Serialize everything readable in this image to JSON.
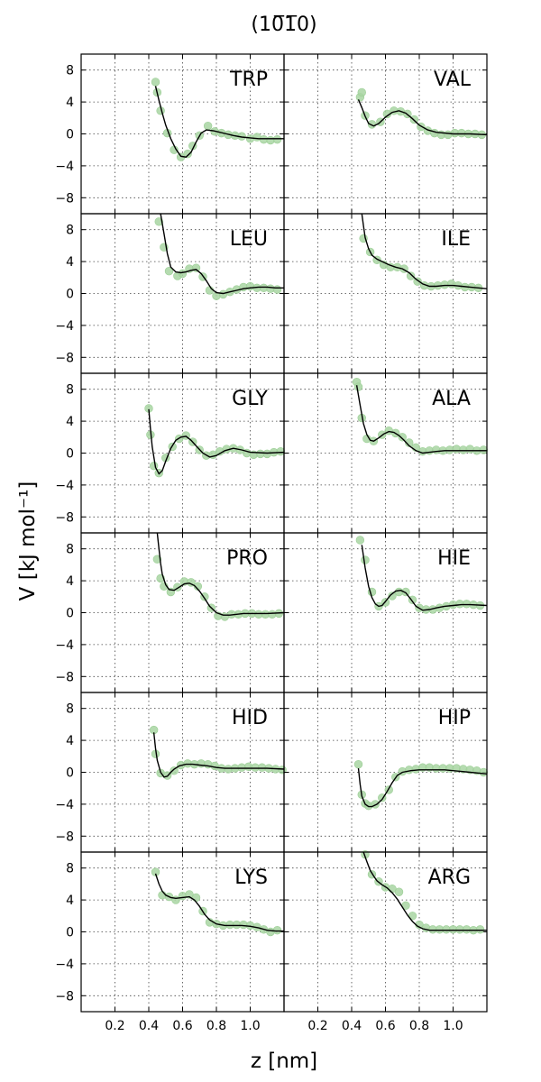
{
  "figure": {
    "title": "(10̅1̅0)",
    "xlabel": "z [nm]",
    "ylabel": "V [kJ mol⁻¹]"
  },
  "chart_data": [
    {
      "type": "scatter",
      "label": "TRP",
      "xlim": [
        0,
        1.2
      ],
      "ylim": [
        -10,
        10
      ],
      "xticks": [
        0.2,
        0.4,
        0.6,
        0.8,
        1.0
      ],
      "yticks": [
        8,
        4,
        0,
        -4,
        -8
      ],
      "x": [
        0.44,
        0.45,
        0.47,
        0.51,
        0.55,
        0.59,
        0.63,
        0.66,
        0.7,
        0.75,
        0.79,
        0.83,
        0.87,
        0.91,
        0.95,
        1.0,
        1.04,
        1.08,
        1.12,
        1.16
      ],
      "y": [
        6.5,
        5.2,
        2.9,
        0.1,
        -2.0,
        -2.9,
        -2.5,
        -1.5,
        -0.2,
        1.0,
        0.3,
        0.1,
        -0.1,
        -0.2,
        -0.3,
        -0.6,
        -0.4,
        -0.7,
        -0.8,
        -0.7
      ],
      "fit_x": [
        0.44,
        0.46,
        0.48,
        0.5,
        0.53,
        0.56,
        0.59,
        0.62,
        0.65,
        0.68,
        0.71,
        0.74,
        0.78,
        0.82,
        0.86,
        0.9,
        0.95,
        1.0,
        1.05,
        1.1,
        1.15,
        1.2
      ],
      "fit_y": [
        6.0,
        4.2,
        2.6,
        1.1,
        -0.6,
        -1.9,
        -2.8,
        -2.9,
        -2.3,
        -1.0,
        0.1,
        0.5,
        0.4,
        0.2,
        0.0,
        -0.2,
        -0.4,
        -0.5,
        -0.6,
        -0.6,
        -0.6,
        -0.6
      ]
    },
    {
      "type": "scatter",
      "label": "VAL",
      "xlim": [
        0,
        1.2
      ],
      "ylim": [
        -10,
        10
      ],
      "xticks": [
        0.2,
        0.4,
        0.6,
        0.8,
        1.0
      ],
      "yticks": [
        8,
        4,
        0,
        -4,
        -8
      ],
      "x": [
        0.45,
        0.46,
        0.48,
        0.52,
        0.57,
        0.61,
        0.65,
        0.69,
        0.73,
        0.77,
        0.81,
        0.85,
        0.89,
        0.93,
        0.97,
        1.01,
        1.05,
        1.09,
        1.13,
        1.17
      ],
      "y": [
        4.6,
        5.2,
        2.3,
        1.2,
        1.5,
        2.5,
        2.9,
        2.8,
        2.5,
        1.8,
        0.9,
        0.4,
        0.1,
        -0.1,
        -0.1,
        0.1,
        0.1,
        0.0,
        0.0,
        -0.1
      ],
      "fit_x": [
        0.44,
        0.46,
        0.48,
        0.5,
        0.53,
        0.56,
        0.6,
        0.64,
        0.68,
        0.72,
        0.76,
        0.8,
        0.85,
        0.9,
        0.95,
        1.0,
        1.1,
        1.2
      ],
      "fit_y": [
        4.3,
        3.3,
        2.2,
        1.3,
        1.0,
        1.3,
        2.1,
        2.7,
        2.9,
        2.6,
        1.9,
        1.1,
        0.5,
        0.2,
        0.1,
        0.0,
        0.0,
        -0.1
      ]
    },
    {
      "type": "scatter",
      "label": "LEU",
      "xlim": [
        0,
        1.2
      ],
      "ylim": [
        -10,
        10
      ],
      "xticks": [
        0.2,
        0.4,
        0.6,
        0.8,
        1.0
      ],
      "yticks": [
        8,
        4,
        0,
        -4,
        -8
      ],
      "x": [
        0.46,
        0.49,
        0.52,
        0.57,
        0.6,
        0.64,
        0.68,
        0.72,
        0.76,
        0.8,
        0.84,
        0.88,
        0.92,
        0.96,
        1.0,
        1.04,
        1.08,
        1.12,
        1.16
      ],
      "y": [
        9.0,
        5.8,
        2.8,
        2.2,
        2.5,
        3.1,
        3.2,
        2.1,
        0.4,
        -0.3,
        -0.1,
        0.2,
        0.5,
        0.8,
        0.9,
        0.7,
        0.7,
        0.6,
        0.5
      ],
      "fit_x": [
        0.47,
        0.49,
        0.51,
        0.53,
        0.56,
        0.59,
        0.62,
        0.65,
        0.68,
        0.71,
        0.74,
        0.77,
        0.8,
        0.84,
        0.88,
        0.92,
        0.96,
        1.0,
        1.05,
        1.1,
        1.15,
        1.2
      ],
      "fit_y": [
        10.0,
        7.5,
        5.0,
        3.3,
        2.7,
        2.6,
        2.7,
        2.9,
        3.0,
        2.5,
        1.6,
        0.6,
        0.1,
        0.0,
        0.2,
        0.4,
        0.6,
        0.7,
        0.8,
        0.8,
        0.7,
        0.7
      ]
    },
    {
      "type": "scatter",
      "label": "ILE",
      "xlim": [
        0,
        1.2
      ],
      "ylim": [
        -10,
        10
      ],
      "xticks": [
        0.2,
        0.4,
        0.6,
        0.8,
        1.0
      ],
      "yticks": [
        8,
        4,
        0,
        -4,
        -8
      ],
      "x": [
        0.47,
        0.51,
        0.55,
        0.59,
        0.63,
        0.67,
        0.71,
        0.75,
        0.79,
        0.83,
        0.87,
        0.91,
        0.95,
        0.99,
        1.03,
        1.07,
        1.11,
        1.15
      ],
      "y": [
        6.9,
        5.2,
        4.2,
        3.6,
        3.3,
        3.3,
        3.1,
        2.2,
        1.5,
        1.0,
        0.9,
        1.0,
        1.1,
        1.2,
        1.0,
        0.8,
        0.8,
        0.7
      ],
      "fit_x": [
        0.46,
        0.47,
        0.48,
        0.5,
        0.52,
        0.55,
        0.58,
        0.62,
        0.66,
        0.7,
        0.74,
        0.78,
        0.82,
        0.86,
        0.9,
        0.95,
        1.0,
        1.05,
        1.1,
        1.15,
        1.2
      ],
      "fit_y": [
        10.0,
        8.5,
        7.0,
        5.6,
        4.8,
        4.3,
        4.0,
        3.6,
        3.3,
        3.1,
        2.6,
        1.8,
        1.2,
        0.9,
        0.9,
        1.0,
        1.0,
        0.9,
        0.8,
        0.7,
        0.6
      ]
    },
    {
      "type": "scatter",
      "label": "GLY",
      "xlim": [
        0,
        1.2
      ],
      "ylim": [
        -10,
        10
      ],
      "xticks": [
        0.2,
        0.4,
        0.6,
        0.8,
        1.0
      ],
      "yticks": [
        8,
        4,
        0,
        -4,
        -8
      ],
      "x": [
        0.4,
        0.41,
        0.43,
        0.46,
        0.5,
        0.54,
        0.58,
        0.62,
        0.66,
        0.7,
        0.74,
        0.78,
        0.82,
        0.86,
        0.9,
        0.94,
        0.98,
        1.02,
        1.06,
        1.1,
        1.14,
        1.18
      ],
      "y": [
        5.6,
        2.3,
        -1.6,
        -2.5,
        -0.6,
        0.8,
        1.8,
        2.2,
        1.4,
        0.4,
        -0.3,
        -0.2,
        0.2,
        0.5,
        0.6,
        0.4,
        0.0,
        -0.2,
        -0.1,
        -0.1,
        0.1,
        0.2
      ],
      "fit_x": [
        0.4,
        0.41,
        0.42,
        0.44,
        0.46,
        0.48,
        0.5,
        0.53,
        0.56,
        0.59,
        0.62,
        0.65,
        0.68,
        0.72,
        0.76,
        0.8,
        0.85,
        0.9,
        0.95,
        1.0,
        1.1,
        1.2
      ],
      "fit_y": [
        5.5,
        3.0,
        0.8,
        -1.8,
        -2.6,
        -2.2,
        -1.0,
        0.6,
        1.6,
        2.0,
        2.1,
        1.6,
        0.9,
        0.0,
        -0.5,
        -0.3,
        0.3,
        0.6,
        0.4,
        0.1,
        0.0,
        0.1
      ]
    },
    {
      "type": "scatter",
      "label": "ALA",
      "xlim": [
        0,
        1.2
      ],
      "ylim": [
        -10,
        10
      ],
      "xticks": [
        0.2,
        0.4,
        0.6,
        0.8,
        1.0
      ],
      "yticks": [
        8,
        4,
        0,
        -4,
        -8
      ],
      "x": [
        0.43,
        0.44,
        0.46,
        0.49,
        0.53,
        0.58,
        0.62,
        0.66,
        0.7,
        0.74,
        0.78,
        0.82,
        0.86,
        0.9,
        0.94,
        0.98,
        1.02,
        1.06,
        1.1,
        1.14,
        1.18
      ],
      "y": [
        8.9,
        8.3,
        4.4,
        1.8,
        1.5,
        2.3,
        2.8,
        2.5,
        2.0,
        1.3,
        0.7,
        0.2,
        0.3,
        0.4,
        0.3,
        0.4,
        0.5,
        0.4,
        0.5,
        0.3,
        0.4
      ],
      "fit_x": [
        0.43,
        0.45,
        0.47,
        0.49,
        0.51,
        0.53,
        0.56,
        0.59,
        0.62,
        0.65,
        0.68,
        0.71,
        0.74,
        0.78,
        0.82,
        0.86,
        0.9,
        0.95,
        1.0,
        1.1,
        1.2
      ],
      "fit_y": [
        8.5,
        6.0,
        3.7,
        2.3,
        1.6,
        1.5,
        1.9,
        2.4,
        2.7,
        2.6,
        2.2,
        1.6,
        0.9,
        0.3,
        0.0,
        0.1,
        0.2,
        0.3,
        0.3,
        0.3,
        0.3
      ]
    },
    {
      "type": "scatter",
      "label": "PRO",
      "xlim": [
        0,
        1.2
      ],
      "ylim": [
        -10,
        10
      ],
      "xticks": [
        0.2,
        0.4,
        0.6,
        0.8,
        1.0
      ],
      "yticks": [
        8,
        4,
        0,
        -4,
        -8
      ],
      "x": [
        0.45,
        0.47,
        0.49,
        0.53,
        0.57,
        0.61,
        0.65,
        0.69,
        0.73,
        0.77,
        0.81,
        0.85,
        0.89,
        0.93,
        0.97,
        1.01,
        1.05,
        1.09,
        1.13,
        1.17
      ],
      "y": [
        6.7,
        4.3,
        3.3,
        2.6,
        3.2,
        3.9,
        3.8,
        3.3,
        2.0,
        0.6,
        -0.4,
        -0.5,
        -0.2,
        -0.2,
        -0.1,
        -0.1,
        -0.2,
        -0.2,
        -0.2,
        -0.1
      ],
      "fit_x": [
        0.45,
        0.46,
        0.47,
        0.48,
        0.5,
        0.52,
        0.55,
        0.58,
        0.61,
        0.64,
        0.67,
        0.7,
        0.73,
        0.76,
        0.8,
        0.84,
        0.88,
        0.92,
        0.96,
        1.0,
        1.1,
        1.2
      ],
      "fit_y": [
        10.0,
        8.0,
        6.2,
        4.8,
        3.5,
        2.9,
        2.8,
        3.2,
        3.6,
        3.7,
        3.4,
        2.7,
        1.8,
        0.8,
        0.0,
        -0.3,
        -0.3,
        -0.2,
        -0.1,
        -0.1,
        -0.1,
        0.0
      ]
    },
    {
      "type": "scatter",
      "label": "HIE",
      "xlim": [
        0,
        1.2
      ],
      "ylim": [
        -10,
        10
      ],
      "xticks": [
        0.2,
        0.4,
        0.6,
        0.8,
        1.0
      ],
      "yticks": [
        8,
        4,
        0,
        -4,
        -8
      ],
      "x": [
        0.45,
        0.48,
        0.52,
        0.56,
        0.6,
        0.64,
        0.68,
        0.72,
        0.76,
        0.8,
        0.84,
        0.88,
        0.92,
        0.96,
        1.0,
        1.04,
        1.08,
        1.12,
        1.16
      ],
      "y": [
        9.1,
        6.6,
        2.6,
        0.8,
        1.3,
        2.1,
        2.6,
        2.6,
        1.6,
        0.6,
        0.4,
        0.4,
        0.6,
        0.8,
        1.0,
        1.1,
        1.1,
        1.0,
        0.9
      ],
      "fit_x": [
        0.46,
        0.48,
        0.5,
        0.52,
        0.54,
        0.56,
        0.58,
        0.6,
        0.63,
        0.66,
        0.69,
        0.72,
        0.75,
        0.78,
        0.82,
        0.86,
        0.9,
        0.95,
        1.0,
        1.05,
        1.1,
        1.2
      ],
      "fit_y": [
        8.5,
        5.6,
        3.3,
        1.9,
        1.1,
        0.8,
        0.9,
        1.4,
        2.2,
        2.7,
        2.8,
        2.5,
        1.7,
        0.8,
        0.3,
        0.4,
        0.6,
        0.8,
        0.9,
        1.0,
        1.0,
        0.9
      ]
    },
    {
      "type": "scatter",
      "label": "HID",
      "xlim": [
        0,
        1.2
      ],
      "ylim": [
        -10,
        10
      ],
      "xticks": [
        0.2,
        0.4,
        0.6,
        0.8,
        1.0
      ],
      "yticks": [
        8,
        4,
        0,
        -4,
        -8
      ],
      "x": [
        0.43,
        0.44,
        0.47,
        0.51,
        0.55,
        0.59,
        0.63,
        0.67,
        0.71,
        0.75,
        0.79,
        0.83,
        0.87,
        0.91,
        0.95,
        0.99,
        1.03,
        1.07,
        1.11,
        1.15,
        1.19
      ],
      "y": [
        5.3,
        2.3,
        -0.1,
        -0.4,
        0.2,
        0.9,
        1.1,
        1.0,
        1.1,
        1.0,
        0.8,
        0.5,
        0.4,
        0.5,
        0.6,
        0.7,
        0.6,
        0.6,
        0.5,
        0.4,
        0.3
      ],
      "fit_x": [
        0.43,
        0.44,
        0.45,
        0.47,
        0.49,
        0.51,
        0.53,
        0.55,
        0.58,
        0.62,
        0.66,
        0.7,
        0.75,
        0.8,
        0.85,
        0.9,
        1.0,
        1.1,
        1.2
      ],
      "fit_y": [
        5.0,
        3.0,
        1.5,
        0.0,
        -0.6,
        -0.5,
        0.0,
        0.4,
        0.8,
        1.0,
        1.0,
        0.9,
        0.8,
        0.6,
        0.5,
        0.5,
        0.5,
        0.5,
        0.4
      ]
    },
    {
      "type": "scatter",
      "label": "HIP",
      "xlim": [
        0,
        1.2
      ],
      "ylim": [
        -10,
        10
      ],
      "xticks": [
        0.2,
        0.4,
        0.6,
        0.8,
        1.0
      ],
      "yticks": [
        8,
        4,
        0,
        -4,
        -8
      ],
      "x": [
        0.44,
        0.46,
        0.48,
        0.5,
        0.54,
        0.58,
        0.62,
        0.66,
        0.7,
        0.74,
        0.78,
        0.82,
        0.86,
        0.9,
        0.94,
        0.98,
        1.02,
        1.06,
        1.1,
        1.14,
        1.18
      ],
      "y": [
        1.0,
        -2.8,
        -3.9,
        -4.2,
        -4.0,
        -3.2,
        -2.2,
        -0.6,
        0.1,
        0.3,
        0.4,
        0.6,
        0.6,
        0.5,
        0.5,
        0.5,
        0.5,
        0.4,
        0.3,
        0.2,
        0.0
      ],
      "fit_x": [
        0.44,
        0.45,
        0.46,
        0.48,
        0.5,
        0.52,
        0.55,
        0.58,
        0.61,
        0.64,
        0.67,
        0.7,
        0.75,
        0.8,
        0.85,
        0.9,
        0.95,
        1.0,
        1.1,
        1.2
      ],
      "fit_y": [
        0.5,
        -1.5,
        -3.0,
        -4.0,
        -4.3,
        -4.3,
        -4.0,
        -3.4,
        -2.4,
        -1.3,
        -0.4,
        0.0,
        0.2,
        0.3,
        0.3,
        0.3,
        0.3,
        0.2,
        0.0,
        -0.2
      ]
    },
    {
      "type": "scatter",
      "label": "LYS",
      "xlim": [
        0,
        1.2
      ],
      "ylim": [
        -10,
        10
      ],
      "xticks": [
        0.2,
        0.4,
        0.6,
        0.8,
        1.0
      ],
      "yticks": [
        8,
        4,
        0,
        -4,
        -8
      ],
      "x": [
        0.44,
        0.48,
        0.52,
        0.56,
        0.6,
        0.64,
        0.68,
        0.72,
        0.76,
        0.8,
        0.84,
        0.88,
        0.92,
        0.96,
        1.0,
        1.04,
        1.08,
        1.12,
        1.16
      ],
      "y": [
        7.5,
        4.6,
        4.4,
        4.0,
        4.5,
        4.7,
        4.3,
        2.6,
        1.2,
        1.0,
        0.8,
        0.9,
        0.9,
        0.9,
        0.8,
        0.6,
        0.3,
        0.0,
        0.2
      ],
      "fit_x": [
        0.44,
        0.46,
        0.48,
        0.5,
        0.53,
        0.56,
        0.6,
        0.64,
        0.67,
        0.7,
        0.73,
        0.76,
        0.8,
        0.85,
        0.9,
        0.95,
        1.0,
        1.05,
        1.1,
        1.15,
        1.2
      ],
      "fit_y": [
        7.3,
        6.0,
        5.1,
        4.6,
        4.3,
        4.2,
        4.3,
        4.4,
        4.0,
        3.2,
        2.2,
        1.5,
        1.0,
        0.8,
        0.8,
        0.8,
        0.7,
        0.5,
        0.2,
        0.1,
        0.1
      ]
    },
    {
      "type": "scatter",
      "label": "ARG",
      "xlim": [
        0,
        1.2
      ],
      "ylim": [
        -10,
        10
      ],
      "xticks": [
        0.2,
        0.4,
        0.6,
        0.8,
        1.0
      ],
      "yticks": [
        8,
        4,
        0,
        -4,
        -8
      ],
      "x": [
        0.48,
        0.52,
        0.56,
        0.6,
        0.64,
        0.68,
        0.72,
        0.76,
        0.8,
        0.84,
        0.88,
        0.92,
        0.96,
        1.0,
        1.04,
        1.08,
        1.12,
        1.16
      ],
      "y": [
        9.7,
        7.2,
        6.3,
        5.6,
        5.4,
        5.0,
        3.3,
        2.0,
        0.9,
        0.5,
        0.3,
        0.3,
        0.3,
        0.3,
        0.3,
        0.3,
        0.2,
        0.3
      ],
      "fit_x": [
        0.47,
        0.49,
        0.51,
        0.53,
        0.55,
        0.58,
        0.61,
        0.64,
        0.67,
        0.7,
        0.73,
        0.76,
        0.79,
        0.82,
        0.86,
        0.9,
        0.95,
        1.0,
        1.1,
        1.2
      ],
      "fit_y": [
        10.0,
        8.8,
        7.7,
        7.0,
        6.4,
        5.9,
        5.5,
        4.9,
        4.1,
        3.1,
        2.1,
        1.3,
        0.7,
        0.4,
        0.2,
        0.2,
        0.2,
        0.2,
        0.2,
        0.2
      ]
    }
  ]
}
